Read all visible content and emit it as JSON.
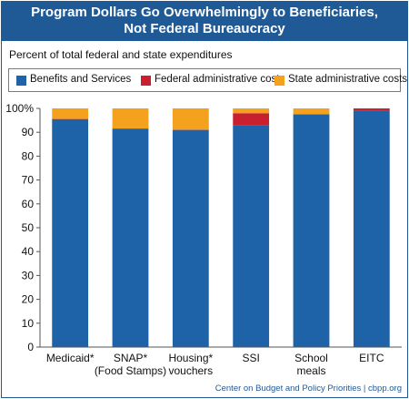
{
  "title_line1": "Program Dollars Go Overwhelmingly to Beneficiaries,",
  "title_line2": "Not Federal Bureaucracy",
  "subtitle": "Percent of total federal and state expenditures",
  "footer": "Center on Budget and Policy Priorities | cbpp.org",
  "colors": {
    "title_bg": "#1f5a96",
    "benefits": "#1e63a8",
    "federal": "#c8202f",
    "state": "#f4a11d"
  },
  "chart_data": {
    "type": "bar",
    "stacked": true,
    "categories": [
      [
        "Medicaid*"
      ],
      [
        "SNAP*",
        "(Food Stamps)"
      ],
      [
        "Housing*",
        "vouchers"
      ],
      [
        "SSI"
      ],
      [
        "School",
        "meals"
      ],
      [
        "EITC"
      ]
    ],
    "series": [
      {
        "name": "Benefits and Services",
        "color": "#1e63a8",
        "values": [
          95.5,
          91.5,
          91.0,
          93.0,
          97.5,
          99.0
        ]
      },
      {
        "name": "Federal administrative costs",
        "color": "#c8202f",
        "values": [
          0.1,
          0.1,
          0.1,
          5.0,
          0.1,
          1.0
        ]
      },
      {
        "name": "State administrative costs",
        "color": "#f4a11d",
        "values": [
          4.4,
          8.4,
          8.9,
          2.0,
          2.4,
          0.0
        ]
      }
    ],
    "ylim": [
      0,
      100
    ],
    "yticks": [
      "0",
      "10",
      "20",
      "30",
      "40",
      "50",
      "60",
      "70",
      "80",
      "90",
      "100%"
    ],
    "grid": false,
    "legend_position": "top"
  }
}
